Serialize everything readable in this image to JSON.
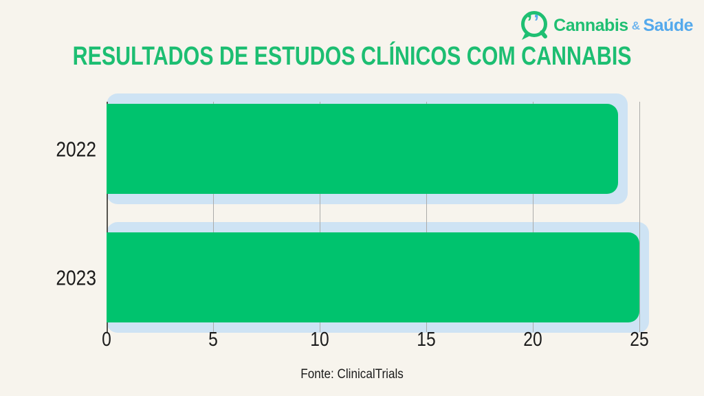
{
  "brand": {
    "icon": "speech-bubble-quotes-icon",
    "name_green": "Cannabis",
    "ampersand": "&",
    "name_blue": "Saúde",
    "colors": {
      "green": "#1FBF72",
      "blue": "#54A9EC",
      "amp": "#6FB5EE"
    }
  },
  "title": "RESULTADOS DE ESTUDOS CLÍNICOS COM CANNABIS",
  "source": "Fonte: ClinicalTrials",
  "chart_data": {
    "type": "bar",
    "orientation": "horizontal",
    "categories": [
      "2022",
      "2023"
    ],
    "values": [
      24,
      25
    ],
    "title": "RESULTADOS DE ESTUDOS CLÍNICOS COM CANNABIS",
    "xlabel": "",
    "ylabel": "",
    "xlim": [
      0,
      25
    ],
    "xticks": [
      0,
      5,
      10,
      15,
      20,
      25
    ],
    "grid": "vertical-gridlines-on",
    "legend": "none",
    "data_labels": "none",
    "source": "Fonte: ClinicalTrials",
    "bar_color": "#00C36E",
    "track_color": "#CEE3F4"
  },
  "colors": {
    "background": "#F7F4ED",
    "title": "#1DBE72",
    "text": "#1B1B1B",
    "gridline": "#ABABA9",
    "axis_line": "#55534E"
  }
}
